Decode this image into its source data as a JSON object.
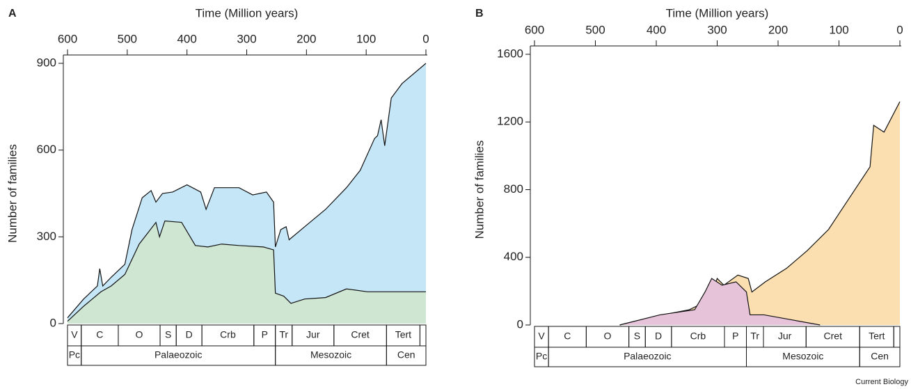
{
  "chart_data": [
    {
      "type": "area",
      "panel": "A",
      "xlabel": "Time (Million years)",
      "ylabel": "Number of families",
      "xlim": [
        600,
        0
      ],
      "xticks": [
        600,
        500,
        400,
        300,
        200,
        100,
        0
      ],
      "ylim": [
        0,
        900
      ],
      "yticks": [
        0,
        300,
        600,
        900
      ],
      "series": [
        {
          "color": "#c5e6f7",
          "x": [
            600,
            573,
            550,
            546,
            541,
            527,
            504,
            492,
            475,
            460,
            452,
            441,
            424,
            400,
            377,
            368,
            354,
            313,
            290,
            267,
            255,
            252,
            243,
            234,
            229,
            203,
            168,
            133,
            110,
            86,
            81,
            75,
            69,
            58,
            40,
            0
          ],
          "values": [
            20,
            85,
            130,
            190,
            130,
            160,
            205,
            325,
            435,
            460,
            420,
            450,
            455,
            480,
            455,
            395,
            470,
            470,
            445,
            455,
            420,
            265,
            325,
            335,
            290,
            335,
            395,
            470,
            530,
            640,
            650,
            705,
            615,
            780,
            830,
            900
          ]
        },
        {
          "color": "#cfe6d2",
          "x": [
            600,
            573,
            544,
            527,
            504,
            480,
            465,
            452,
            446,
            437,
            409,
            386,
            365,
            342,
            313,
            272,
            255,
            252,
            238,
            226,
            203,
            168,
            133,
            98,
            0
          ],
          "values": [
            8,
            60,
            110,
            130,
            170,
            275,
            315,
            350,
            300,
            355,
            350,
            270,
            265,
            275,
            270,
            265,
            255,
            105,
            95,
            70,
            85,
            90,
            120,
            110,
            110
          ]
        }
      ],
      "periods": [
        {
          "label": "V",
          "start": 600,
          "end": 577
        },
        {
          "label": "C",
          "start": 577,
          "end": 515
        },
        {
          "label": "O",
          "start": 515,
          "end": 445
        },
        {
          "label": "S",
          "start": 445,
          "end": 418
        },
        {
          "label": "D",
          "start": 418,
          "end": 375
        },
        {
          "label": "Crb",
          "start": 375,
          "end": 288
        },
        {
          "label": "P",
          "start": 288,
          "end": 252
        },
        {
          "label": "Tr",
          "start": 252,
          "end": 224
        },
        {
          "label": "Jur",
          "start": 224,
          "end": 154
        },
        {
          "label": "Cret",
          "start": 154,
          "end": 66
        },
        {
          "label": "Tert",
          "start": 66,
          "end": 10
        },
        {
          "label": null,
          "start": 10,
          "end": 0
        }
      ],
      "eras": [
        {
          "label": "Pc",
          "start": 600,
          "end": 577
        },
        {
          "label": "Palaeozoic",
          "start": 577,
          "end": 252
        },
        {
          "label": "Mesozoic",
          "start": 252,
          "end": 66
        },
        {
          "label": "Cen",
          "start": 66,
          "end": 0
        }
      ]
    },
    {
      "type": "area",
      "panel": "B",
      "xlabel": "Time (Million years)",
      "ylabel": "Number of families",
      "xlim": [
        600,
        0
      ],
      "xticks": [
        600,
        500,
        400,
        300,
        200,
        100,
        0
      ],
      "ylim": [
        0,
        1600
      ],
      "yticks": [
        0,
        400,
        800,
        1200,
        1600
      ],
      "series": [
        {
          "color": "#fbdfb0",
          "x": [
            460,
            403,
            346,
            312,
            300,
            289,
            266,
            249,
            243,
            221,
            186,
            152,
            117,
            95,
            72,
            49,
            43,
            26,
            0
          ],
          "values": [
            0,
            50,
            90,
            150,
            275,
            235,
            295,
            275,
            195,
            255,
            335,
            440,
            565,
            685,
            810,
            935,
            1180,
            1140,
            1320
          ]
        },
        {
          "color": "#e6c3d9",
          "x": [
            460,
            394,
            337,
            320,
            309,
            292,
            269,
            252,
            246,
            223,
            177,
            131
          ],
          "values": [
            0,
            60,
            90,
            195,
            275,
            235,
            255,
            195,
            60,
            60,
            30,
            0
          ]
        }
      ],
      "periods": [
        {
          "label": "V",
          "start": 600,
          "end": 577
        },
        {
          "label": "C",
          "start": 577,
          "end": 515
        },
        {
          "label": "O",
          "start": 515,
          "end": 445
        },
        {
          "label": "S",
          "start": 445,
          "end": 418
        },
        {
          "label": "D",
          "start": 418,
          "end": 375
        },
        {
          "label": "Crb",
          "start": 375,
          "end": 288
        },
        {
          "label": "P",
          "start": 288,
          "end": 252
        },
        {
          "label": "Tr",
          "start": 252,
          "end": 224
        },
        {
          "label": "Jur",
          "start": 224,
          "end": 154
        },
        {
          "label": "Cret",
          "start": 154,
          "end": 66
        },
        {
          "label": "Tert",
          "start": 66,
          "end": 10
        },
        {
          "label": null,
          "start": 10,
          "end": 0
        }
      ],
      "eras": [
        {
          "label": "Pc",
          "start": 600,
          "end": 577
        },
        {
          "label": "Palaeozoic",
          "start": 577,
          "end": 252
        },
        {
          "label": "Mesozoic",
          "start": 252,
          "end": 66
        },
        {
          "label": "Cen",
          "start": 66,
          "end": 0
        }
      ]
    }
  ],
  "credit": "Current Biology"
}
